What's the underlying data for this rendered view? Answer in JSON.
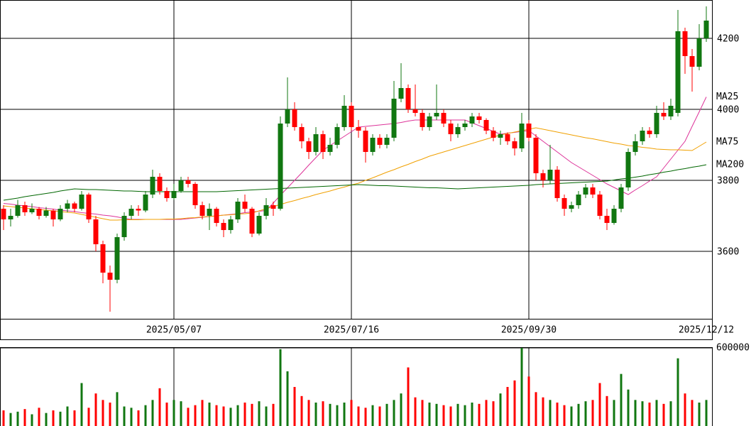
{
  "chart_data": {
    "type": "candlestick",
    "categories": [
      null,
      null,
      null,
      null,
      null,
      null,
      null,
      null,
      null,
      null,
      null,
      null,
      null,
      null,
      null,
      null,
      null,
      null,
      null,
      null,
      null,
      null,
      null,
      null,
      "2025/05/07",
      null,
      null,
      null,
      null,
      null,
      null,
      null,
      null,
      null,
      null,
      null,
      null,
      null,
      null,
      null,
      null,
      null,
      null,
      null,
      null,
      null,
      null,
      null,
      null,
      "2025/07/16",
      null,
      null,
      null,
      null,
      null,
      null,
      null,
      null,
      null,
      null,
      null,
      null,
      null,
      null,
      null,
      null,
      null,
      null,
      null,
      null,
      null,
      null,
      null,
      null,
      "2025/09/30",
      null,
      null,
      null,
      null,
      null,
      null,
      null,
      null,
      null,
      null,
      null,
      null,
      null,
      null,
      null,
      null,
      null,
      null,
      null,
      null,
      null,
      null,
      null,
      null,
      "2025/12/12"
    ],
    "open": [
      3720,
      3690,
      3700,
      3730,
      3710,
      3720,
      3700,
      3715,
      3690,
      3720,
      3735,
      3720,
      3760,
      3690,
      3620,
      3540,
      3520,
      3640,
      3700,
      3720,
      3715,
      3760,
      3810,
      3770,
      3750,
      3770,
      3800,
      3790,
      3730,
      3700,
      3720,
      3680,
      3660,
      3690,
      3740,
      3720,
      3650,
      3700,
      3730,
      3720,
      3960,
      4000,
      3950,
      3910,
      3880,
      3930,
      3880,
      3900,
      3950,
      4010,
      3950,
      3940,
      3880,
      3920,
      3900,
      3920,
      4030,
      4060,
      4000,
      3990,
      3950,
      3980,
      3990,
      3960,
      3930,
      3950,
      3960,
      3980,
      3970,
      3940,
      3920,
      3930,
      3910,
      3890,
      3960,
      3920,
      3820,
      3800,
      3830,
      3750,
      3720,
      3730,
      3760,
      3780,
      3760,
      3700,
      3680,
      3720,
      3780,
      3880,
      3910,
      3940,
      3930,
      3990,
      3980,
      3990,
      4220,
      4150,
      4120,
      4200
    ],
    "high": [
      3730,
      3720,
      3745,
      3740,
      3735,
      3725,
      3725,
      3720,
      3730,
      3745,
      3740,
      3770,
      3765,
      3700,
      3630,
      3560,
      3650,
      3710,
      3730,
      3730,
      3770,
      3830,
      3820,
      3780,
      3790,
      3810,
      3810,
      3795,
      3740,
      3735,
      3725,
      3690,
      3700,
      3750,
      3760,
      3725,
      3710,
      3750,
      3740,
      3980,
      4090,
      4020,
      3960,
      3920,
      3950,
      3940,
      3920,
      3960,
      4040,
      4020,
      3970,
      3950,
      3930,
      3930,
      3930,
      4080,
      4130,
      4070,
      4070,
      4000,
      3990,
      4070,
      4000,
      3970,
      3960,
      3970,
      3990,
      3990,
      3975,
      3950,
      3940,
      3935,
      3920,
      3990,
      3970,
      3930,
      3830,
      3900,
      3840,
      3760,
      3740,
      3770,
      3790,
      3790,
      3770,
      3720,
      3730,
      3790,
      3890,
      3930,
      3950,
      3950,
      4010,
      4020,
      4030,
      4280,
      4230,
      4170,
      4240,
      4290
    ],
    "low": [
      3660,
      3670,
      3695,
      3700,
      3705,
      3690,
      3695,
      3670,
      3685,
      3710,
      3710,
      3715,
      3680,
      3600,
      3510,
      3430,
      3510,
      3630,
      3690,
      3700,
      3710,
      3750,
      3760,
      3740,
      3745,
      3765,
      3780,
      3720,
      3690,
      3660,
      3670,
      3640,
      3650,
      3680,
      3710,
      3640,
      3645,
      3690,
      3700,
      3715,
      3950,
      3940,
      3890,
      3860,
      3870,
      3860,
      3870,
      3890,
      3940,
      3940,
      3920,
      3850,
      3870,
      3890,
      3890,
      3910,
      4020,
      3990,
      3980,
      3940,
      3940,
      3970,
      3950,
      3910,
      3920,
      3940,
      3950,
      3960,
      3930,
      3910,
      3900,
      3900,
      3870,
      3880,
      3910,
      3800,
      3780,
      3790,
      3740,
      3700,
      3710,
      3720,
      3750,
      3750,
      3690,
      3660,
      3675,
      3710,
      3770,
      3870,
      3900,
      3920,
      3920,
      3970,
      3970,
      3980,
      4100,
      4050,
      4110,
      4190
    ],
    "close": [
      3690,
      3700,
      3730,
      3710,
      3720,
      3700,
      3715,
      3690,
      3720,
      3735,
      3720,
      3760,
      3690,
      3620,
      3540,
      3520,
      3640,
      3700,
      3720,
      3715,
      3760,
      3810,
      3770,
      3750,
      3770,
      3800,
      3790,
      3730,
      3700,
      3720,
      3680,
      3660,
      3690,
      3740,
      3720,
      3650,
      3700,
      3730,
      3720,
      3960,
      4000,
      3950,
      3910,
      3880,
      3930,
      3880,
      3900,
      3950,
      4010,
      3950,
      3940,
      3880,
      3920,
      3900,
      3920,
      4030,
      4060,
      4000,
      3990,
      3950,
      3980,
      3990,
      3960,
      3930,
      3950,
      3960,
      3980,
      3970,
      3940,
      3920,
      3930,
      3910,
      3890,
      3960,
      3920,
      3820,
      3800,
      3830,
      3750,
      3720,
      3730,
      3760,
      3780,
      3760,
      3700,
      3680,
      3720,
      3780,
      3880,
      3910,
      3940,
      3930,
      3990,
      3980,
      4010,
      4220,
      4150,
      4120,
      4200,
      4250
    ],
    "up_color": "#117711",
    "down_color": "#ff0000",
    "ylim": [
      3410,
      4308
    ],
    "yticks": [
      3600,
      3800,
      4000,
      4200
    ],
    "grid": true,
    "series": [
      {
        "name": "MA25",
        "color": "#dd3399",
        "values": [
          3735,
          3733,
          3730,
          3728,
          3726,
          3723,
          3721,
          3719,
          3716,
          3714,
          3712,
          3709,
          3707,
          3705,
          3702,
          3700,
          3697,
          3693,
          3690,
          3690,
          3690,
          3690,
          3690,
          3690,
          3690,
          3690,
          3692,
          3694,
          3696,
          3698,
          3700,
          3702,
          3704,
          3706,
          3709,
          3711,
          3713,
          3715,
          3736,
          3758,
          3779,
          3800,
          3821,
          3843,
          3864,
          3885,
          3898,
          3911,
          3924,
          3937,
          3950,
          3952,
          3954,
          3956,
          3958,
          3960,
          3963,
          3967,
          3970,
          3970,
          3970,
          3970,
          3970,
          3970,
          3970,
          3970,
          3962,
          3954,
          3946,
          3938,
          3930,
          3933,
          3935,
          3938,
          3940,
          3925,
          3910,
          3895,
          3880,
          3865,
          3850,
          3838,
          3826,
          3814,
          3802,
          3790,
          3780,
          3770,
          3760,
          3773,
          3785,
          3798,
          3810,
          3835,
          3860,
          3885,
          3910,
          3952,
          3993,
          4035
        ]
      },
      {
        "name": "MA75",
        "color": "#f0a000",
        "values": [
          3728,
          3726,
          3724,
          3722,
          3720,
          3718,
          3716,
          3714,
          3712,
          3710,
          3708,
          3704,
          3700,
          3696,
          3692,
          3688,
          3688,
          3689,
          3689,
          3689,
          3690,
          3690,
          3690,
          3691,
          3691,
          3692,
          3694,
          3695,
          3697,
          3698,
          3700,
          3702,
          3703,
          3705,
          3706,
          3708,
          3714,
          3720,
          3726,
          3732,
          3738,
          3743,
          3749,
          3754,
          3760,
          3765,
          3770,
          3776,
          3781,
          3787,
          3792,
          3800,
          3807,
          3815,
          3823,
          3830,
          3838,
          3845,
          3853,
          3860,
          3868,
          3874,
          3880,
          3886,
          3892,
          3898,
          3904,
          3910,
          3916,
          3922,
          3928,
          3932,
          3936,
          3940,
          3944,
          3948,
          3944,
          3940,
          3936,
          3932,
          3928,
          3924,
          3920,
          3917,
          3913,
          3909,
          3905,
          3902,
          3898,
          3896,
          3893,
          3891,
          3888,
          3887,
          3886,
          3886,
          3885,
          3884,
          3896,
          3908
        ]
      },
      {
        "name": "MA200",
        "color": "#006600",
        "values": [
          3744,
          3747,
          3750,
          3754,
          3757,
          3760,
          3763,
          3766,
          3770,
          3773,
          3776,
          3775,
          3774,
          3774,
          3773,
          3772,
          3771,
          3770,
          3770,
          3769,
          3768,
          3768,
          3768,
          3768,
          3768,
          3768,
          3768,
          3768,
          3768,
          3768,
          3768,
          3769,
          3770,
          3771,
          3772,
          3773,
          3774,
          3775,
          3776,
          3777,
          3778,
          3779,
          3780,
          3781,
          3782,
          3783,
          3784,
          3785,
          3786,
          3787,
          3788,
          3787,
          3786,
          3785,
          3785,
          3784,
          3783,
          3782,
          3781,
          3780,
          3779,
          3779,
          3778,
          3777,
          3776,
          3777,
          3778,
          3779,
          3780,
          3781,
          3782,
          3783,
          3784,
          3785,
          3786,
          3788,
          3789,
          3790,
          3791,
          3792,
          3793,
          3794,
          3795,
          3796,
          3797,
          3798,
          3801,
          3804,
          3806,
          3809,
          3812,
          3816,
          3819,
          3823,
          3826,
          3830,
          3833,
          3837,
          3840,
          3844
        ]
      }
    ],
    "volume": {
      "ylim": [
        0,
        600000
      ],
      "yticks": [
        600000
      ],
      "values": [
        120000,
        100000,
        110000,
        130000,
        90000,
        140000,
        100000,
        120000,
        110000,
        150000,
        120000,
        330000,
        140000,
        250000,
        200000,
        180000,
        260000,
        150000,
        140000,
        120000,
        160000,
        200000,
        290000,
        180000,
        200000,
        190000,
        140000,
        160000,
        200000,
        180000,
        160000,
        150000,
        140000,
        160000,
        180000,
        170000,
        190000,
        150000,
        170000,
        590000,
        420000,
        300000,
        230000,
        200000,
        180000,
        190000,
        170000,
        160000,
        180000,
        200000,
        150000,
        140000,
        160000,
        150000,
        170000,
        200000,
        250000,
        450000,
        220000,
        200000,
        180000,
        170000,
        160000,
        150000,
        170000,
        160000,
        180000,
        170000,
        200000,
        190000,
        250000,
        300000,
        350000,
        600000,
        380000,
        260000,
        220000,
        200000,
        180000,
        160000,
        150000,
        170000,
        190000,
        200000,
        330000,
        230000,
        200000,
        400000,
        280000,
        200000,
        190000,
        180000,
        200000,
        170000,
        190000,
        520000,
        250000,
        200000,
        180000,
        200000
      ]
    }
  }
}
